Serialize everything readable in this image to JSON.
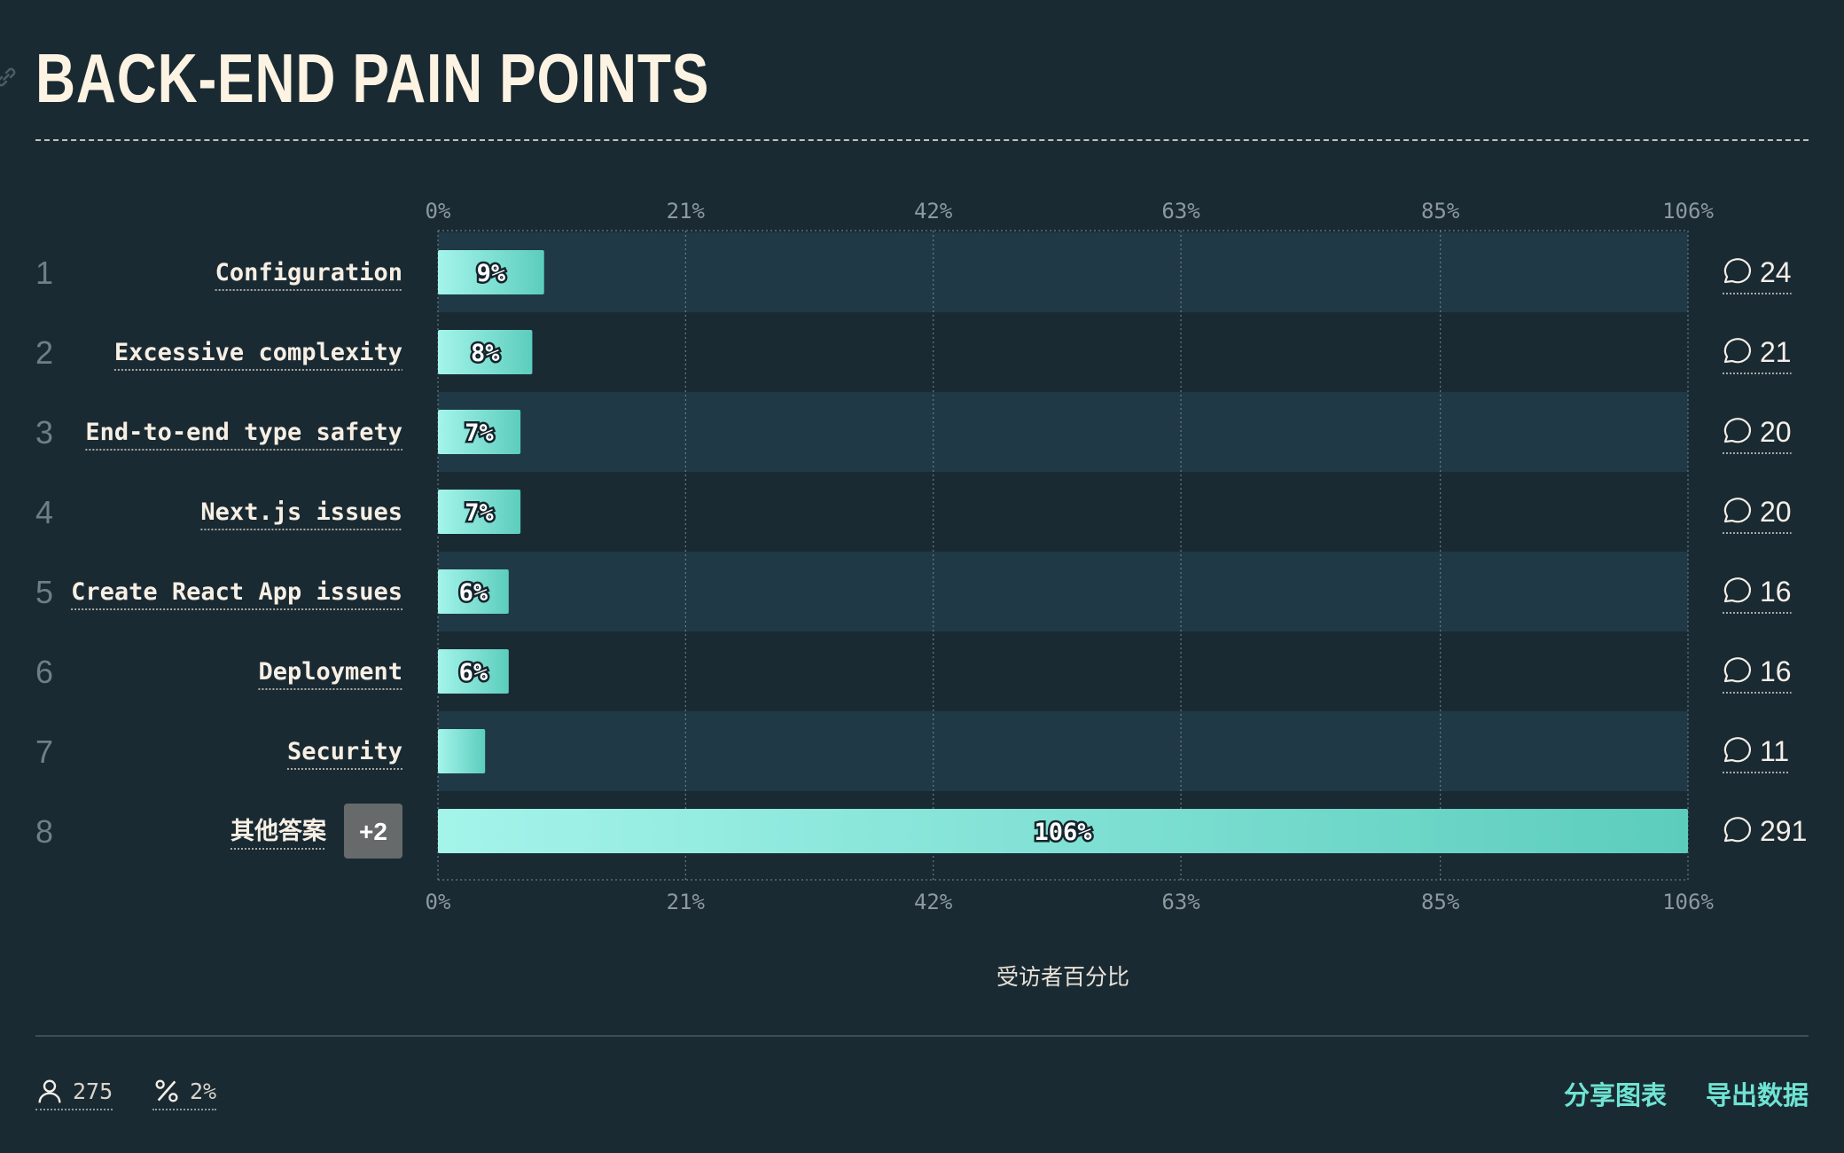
{
  "header": {
    "title": "BACK-END PAIN POINTS",
    "link_icon": "link-icon"
  },
  "chart_data": {
    "type": "bar",
    "orientation": "horizontal",
    "title": "BACK-END PAIN POINTS",
    "xlabel": "受访者百分比",
    "xlim": [
      0,
      106
    ],
    "ticks": [
      "0%",
      "21%",
      "42%",
      "63%",
      "85%",
      "106%"
    ],
    "ticks_positions": [
      0,
      21,
      42,
      63,
      85,
      106
    ],
    "grid": true,
    "rows": [
      {
        "rank": "1",
        "label": "Configuration",
        "value": 9,
        "value_label": "9%",
        "count": "24"
      },
      {
        "rank": "2",
        "label": "Excessive complexity",
        "value": 8,
        "value_label": "8%",
        "count": "21"
      },
      {
        "rank": "3",
        "label": "End-to-end type safety",
        "value": 7,
        "value_label": "7%",
        "count": "20"
      },
      {
        "rank": "4",
        "label": "Next.js issues",
        "value": 7,
        "value_label": "7%",
        "count": "20"
      },
      {
        "rank": "5",
        "label": "Create React App issues",
        "value": 6,
        "value_label": "6%",
        "count": "16"
      },
      {
        "rank": "6",
        "label": "Deployment",
        "value": 6,
        "value_label": "6%",
        "count": "16"
      },
      {
        "rank": "7",
        "label": "Security",
        "value": 4,
        "value_label": "",
        "count": "11"
      },
      {
        "rank": "8",
        "label": "其他答案",
        "badge": "+2",
        "value": 106,
        "value_label": "106%",
        "count": "291"
      }
    ],
    "colors": {
      "bar_start": "#a4f4ea",
      "bar_end": "#5ccdbd",
      "band": "#1f3947",
      "grid": "#8c999e"
    }
  },
  "footer": {
    "respondents": "275",
    "percentage": "2%",
    "share_label": "分享图表",
    "export_label": "导出数据"
  }
}
